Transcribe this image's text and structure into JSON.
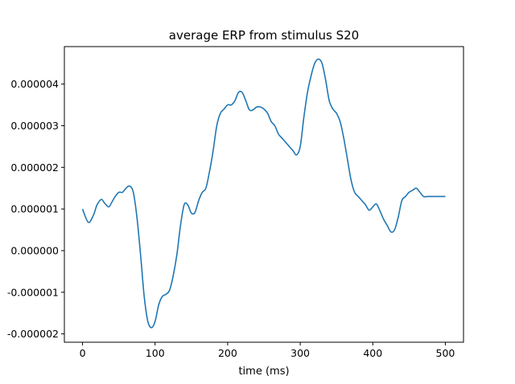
{
  "chart_data": {
    "type": "line",
    "title": "average ERP from stimulus S20",
    "xlabel": "time (ms)",
    "ylabel": "",
    "xlim": [
      -25,
      525
    ],
    "ylim": [
      -2.2e-06,
      4.9e-06
    ],
    "x_ticks": [
      0,
      100,
      200,
      300,
      400,
      500
    ],
    "x_tick_labels": [
      "0",
      "100",
      "200",
      "300",
      "400",
      "500"
    ],
    "y_ticks": [
      -2e-06,
      -1e-06,
      0,
      1e-06,
      2e-06,
      3e-06,
      4e-06
    ],
    "y_tick_labels": [
      "-0.000002",
      "-0.000001",
      "0.000000",
      "0.000001",
      "0.000002",
      "0.000003",
      "0.000004"
    ],
    "grid": false,
    "series": [
      {
        "color": "#1f77b4",
        "x": [
          0,
          8,
          15,
          20,
          26,
          30,
          36,
          40,
          45,
          50,
          55,
          60,
          65,
          70,
          75,
          80,
          85,
          90,
          95,
          100,
          105,
          110,
          115,
          120,
          125,
          130,
          135,
          140,
          145,
          150,
          155,
          160,
          165,
          170,
          175,
          180,
          185,
          190,
          195,
          200,
          205,
          210,
          215,
          220,
          225,
          230,
          235,
          240,
          245,
          250,
          255,
          260,
          265,
          270,
          275,
          280,
          285,
          290,
          295,
          300,
          305,
          310,
          315,
          320,
          325,
          330,
          335,
          340,
          345,
          350,
          355,
          360,
          365,
          370,
          375,
          380,
          385,
          390,
          395,
          400,
          405,
          410,
          415,
          420,
          425,
          430,
          435,
          440,
          445,
          450,
          455,
          460,
          465,
          470,
          475,
          480,
          485,
          490,
          495,
          500
        ],
        "y": [
          1e-06,
          6.8e-07,
          8.5e-07,
          1.1e-06,
          1.23e-06,
          1.15e-06,
          1.05e-06,
          1.15e-06,
          1.3e-06,
          1.4e-06,
          1.4e-06,
          1.5e-06,
          1.55e-06,
          1.4e-06,
          8e-07,
          -1e-07,
          -1.1e-06,
          -1.7e-06,
          -1.85e-06,
          -1.7e-06,
          -1.3e-06,
          -1.1e-06,
          -1.05e-06,
          -9.5e-07,
          -6e-07,
          -1e-07,
          6e-07,
          1.1e-06,
          1.1e-06,
          9e-07,
          9.2e-07,
          1.2e-06,
          1.4e-06,
          1.5e-06,
          1.9e-06,
          2.4e-06,
          3e-06,
          3.3e-06,
          3.4e-06,
          3.5e-06,
          3.5e-06,
          3.6e-06,
          3.8e-06,
          3.8e-06,
          3.6e-06,
          3.38e-06,
          3.38e-06,
          3.45e-06,
          3.45e-06,
          3.4e-06,
          3.3e-06,
          3.1e-06,
          3e-06,
          2.8e-06,
          2.7e-06,
          2.6e-06,
          2.5e-06,
          2.4e-06,
          2.3e-06,
          2.5e-06,
          3.2e-06,
          3.8e-06,
          4.2e-06,
          4.5e-06,
          4.6e-06,
          4.5e-06,
          4.1e-06,
          3.6e-06,
          3.4e-06,
          3.3e-06,
          3.1e-06,
          2.7e-06,
          2.2e-06,
          1.7e-06,
          1.4e-06,
          1.3e-06,
          1.2e-06,
          1.1e-06,
          9.7e-07,
          1.05e-06,
          1.12e-06,
          9.5e-07,
          7.5e-07,
          6e-07,
          4.5e-07,
          5e-07,
          8e-07,
          1.2e-06,
          1.3e-06,
          1.4e-06,
          1.45e-06,
          1.5e-06,
          1.4e-06,
          1.3e-06,
          1.3e-06,
          1.3e-06,
          1.3e-06,
          1.3e-06,
          1.3e-06,
          1.3e-06
        ]
      }
    ]
  }
}
